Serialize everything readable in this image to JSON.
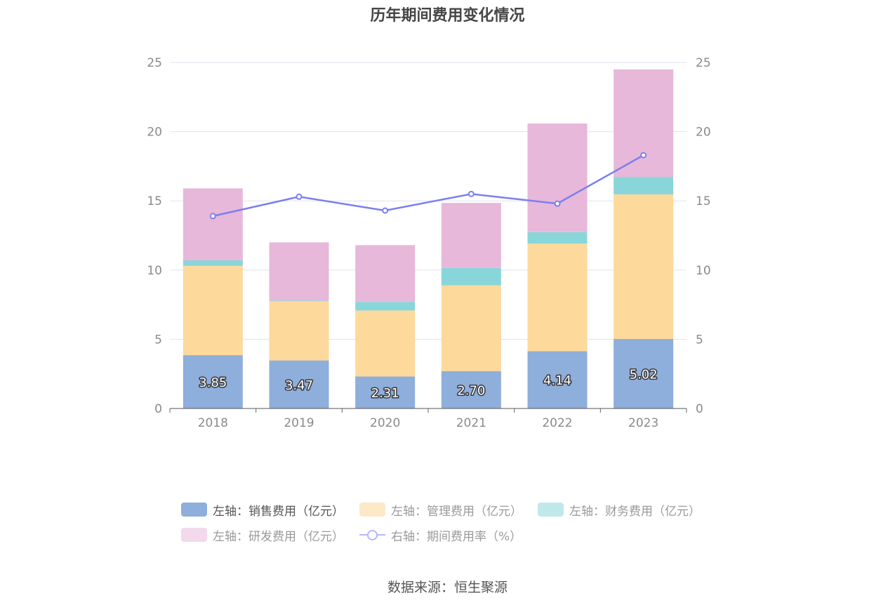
{
  "chart_data": {
    "type": "bar",
    "title": "历年期间费用变化情况",
    "categories": [
      "2018",
      "2019",
      "2020",
      "2021",
      "2022",
      "2023"
    ],
    "series": [
      {
        "name": "左轴：销售费用（亿元）",
        "axis": "left",
        "color": "#8eaedb",
        "values": [
          3.85,
          3.47,
          2.31,
          2.7,
          4.14,
          5.02
        ]
      },
      {
        "name": "左轴：管理费用（亿元）",
        "axis": "left",
        "color": "#fdd99b",
        "values": [
          6.45,
          4.28,
          4.77,
          6.2,
          7.78,
          10.45
        ]
      },
      {
        "name": "左轴：财务费用（亿元）",
        "axis": "left",
        "color": "#88d6da",
        "values": [
          0.4,
          0.05,
          0.62,
          1.25,
          0.82,
          1.26
        ]
      },
      {
        "name": "左轴：研发费用（亿元）",
        "axis": "left",
        "color": "#e7b8da",
        "values": [
          5.2,
          4.2,
          4.1,
          4.7,
          7.85,
          7.77
        ]
      },
      {
        "name": "右轴：期间费用率（%）",
        "axis": "right",
        "type": "line",
        "color": "#7b7ff0",
        "values": [
          13.9,
          15.3,
          14.3,
          15.5,
          14.8,
          18.3
        ]
      }
    ],
    "data_labels": [
      "3.85",
      "3.47",
      "2.31",
      "2.70",
      "4.14",
      "5.02"
    ],
    "y_left": {
      "min": 0,
      "max": 25,
      "ticks": [
        "0",
        "5",
        "10",
        "15",
        "20",
        "25"
      ]
    },
    "y_right": {
      "min": 0,
      "max": 25,
      "ticks": [
        "0",
        "5",
        "10",
        "15",
        "20",
        "25"
      ]
    },
    "stacked": true,
    "grid": true,
    "legend_position": "bottom"
  },
  "legend": [
    {
      "label": "左轴：销售费用（亿元）",
      "color": "#8eaedb",
      "kind": "box",
      "active": true
    },
    {
      "label": "左轴：管理费用（亿元）",
      "color": "#fde8c8",
      "kind": "box",
      "active": false
    },
    {
      "label": "左轴：财务费用（亿元）",
      "color": "#c0e8ea",
      "kind": "box",
      "active": false
    },
    {
      "label": "左轴：研发费用（亿元）",
      "color": "#f2d9ec",
      "kind": "box",
      "active": false
    },
    {
      "label": "右轴：期间费用率（%）",
      "color": "#b4b7f4",
      "kind": "line",
      "active": false
    }
  ],
  "source": "数据来源：恒生聚源"
}
